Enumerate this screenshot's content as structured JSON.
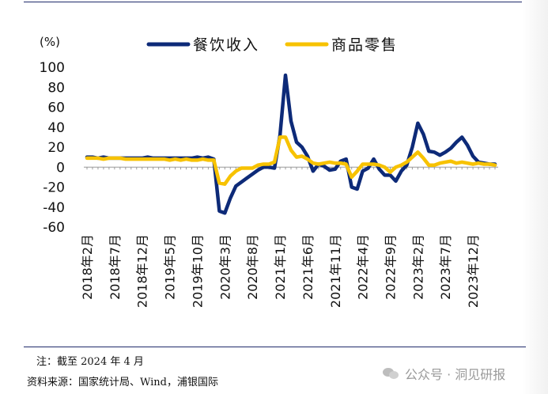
{
  "chart_data": {
    "type": "line",
    "ylabel": "(%)",
    "ylim": [
      -60,
      100
    ],
    "yticks": [
      -60,
      -40,
      -20,
      0,
      20,
      40,
      60,
      80,
      100
    ],
    "grid": false,
    "legend_position": "top-center",
    "x": [
      "2018-02",
      "2018-03",
      "2018-04",
      "2018-05",
      "2018-06",
      "2018-07",
      "2018-08",
      "2018-09",
      "2018-10",
      "2018-11",
      "2018-12",
      "2019-01",
      "2019-02",
      "2019-03",
      "2019-04",
      "2019-05",
      "2019-06",
      "2019-07",
      "2019-08",
      "2019-09",
      "2019-10",
      "2019-11",
      "2019-12",
      "2020-01",
      "2020-02",
      "2020-03",
      "2020-04",
      "2020-05",
      "2020-06",
      "2020-07",
      "2020-08",
      "2020-09",
      "2020-10",
      "2020-11",
      "2020-12",
      "2021-01",
      "2021-02",
      "2021-03",
      "2021-04",
      "2021-05",
      "2021-06",
      "2021-07",
      "2021-08",
      "2021-09",
      "2021-10",
      "2021-11",
      "2021-12",
      "2022-01",
      "2022-02",
      "2022-03",
      "2022-04",
      "2022-05",
      "2022-06",
      "2022-07",
      "2022-08",
      "2022-09",
      "2022-10",
      "2022-11",
      "2022-12",
      "2023-01",
      "2023-02",
      "2023-03",
      "2023-04",
      "2023-05",
      "2023-06",
      "2023-07",
      "2023-08",
      "2023-09",
      "2023-10",
      "2023-11",
      "2023-12",
      "2024-01",
      "2024-02",
      "2024-03",
      "2024-04"
    ],
    "x_tick_labels": [
      "2018年2月",
      "2018年7月",
      "2018年12月",
      "2019年5月",
      "2019年10月",
      "2020年3月",
      "2020年8月",
      "2021年1月",
      "2021年6月",
      "2021年11月",
      "2022年4月",
      "2022年9月",
      "2023年2月",
      "2023年7月",
      "2023年12月"
    ],
    "series": [
      {
        "name": "餐饮收入",
        "color": "#0d2a78",
        "values": [
          10,
          10,
          9,
          10,
          9,
          9,
          9,
          9,
          9,
          9,
          9,
          10,
          9,
          9,
          9,
          9,
          9,
          9,
          9,
          9,
          10,
          9,
          10,
          8,
          -44,
          -46,
          -31,
          -19,
          -15,
          -11,
          -7,
          -3,
          0,
          0,
          -1,
          32,
          92,
          46,
          25,
          20,
          11,
          -4,
          3,
          1,
          -3,
          -2,
          6,
          8,
          -20,
          -22,
          -4,
          -1,
          8,
          -2,
          -8,
          -8,
          -14,
          -4,
          2,
          20,
          44,
          33,
          16,
          15,
          12,
          15,
          19,
          25,
          30,
          22,
          11,
          5,
          4,
          3,
          3
        ]
      },
      {
        "name": "商品零售",
        "color": "#f7c200",
        "values": [
          9,
          9,
          9,
          8,
          9,
          9,
          9,
          8,
          8,
          8,
          8,
          8,
          8,
          8,
          8,
          7,
          8,
          7,
          8,
          7,
          7,
          8,
          7,
          7,
          -16,
          -17,
          -9,
          -4,
          -1,
          -1,
          -1,
          2,
          3,
          3,
          5,
          30,
          30,
          17,
          10,
          11,
          8,
          4,
          3,
          4,
          5,
          4,
          4,
          3,
          -10,
          -4,
          3,
          3,
          3,
          2,
          0,
          -5,
          0,
          2,
          5,
          10,
          15,
          9,
          2,
          2,
          4,
          5,
          6,
          4,
          5,
          4,
          3,
          4,
          3,
          3,
          2
        ]
      }
    ]
  },
  "footer": {
    "note": "注：截至 2024 年 4 月",
    "source": "资料来源：国家统计局、Wind，浦银国际"
  },
  "watermark": {
    "text": "公众号 · 洞见研报",
    "icon": "wechat-icon"
  }
}
